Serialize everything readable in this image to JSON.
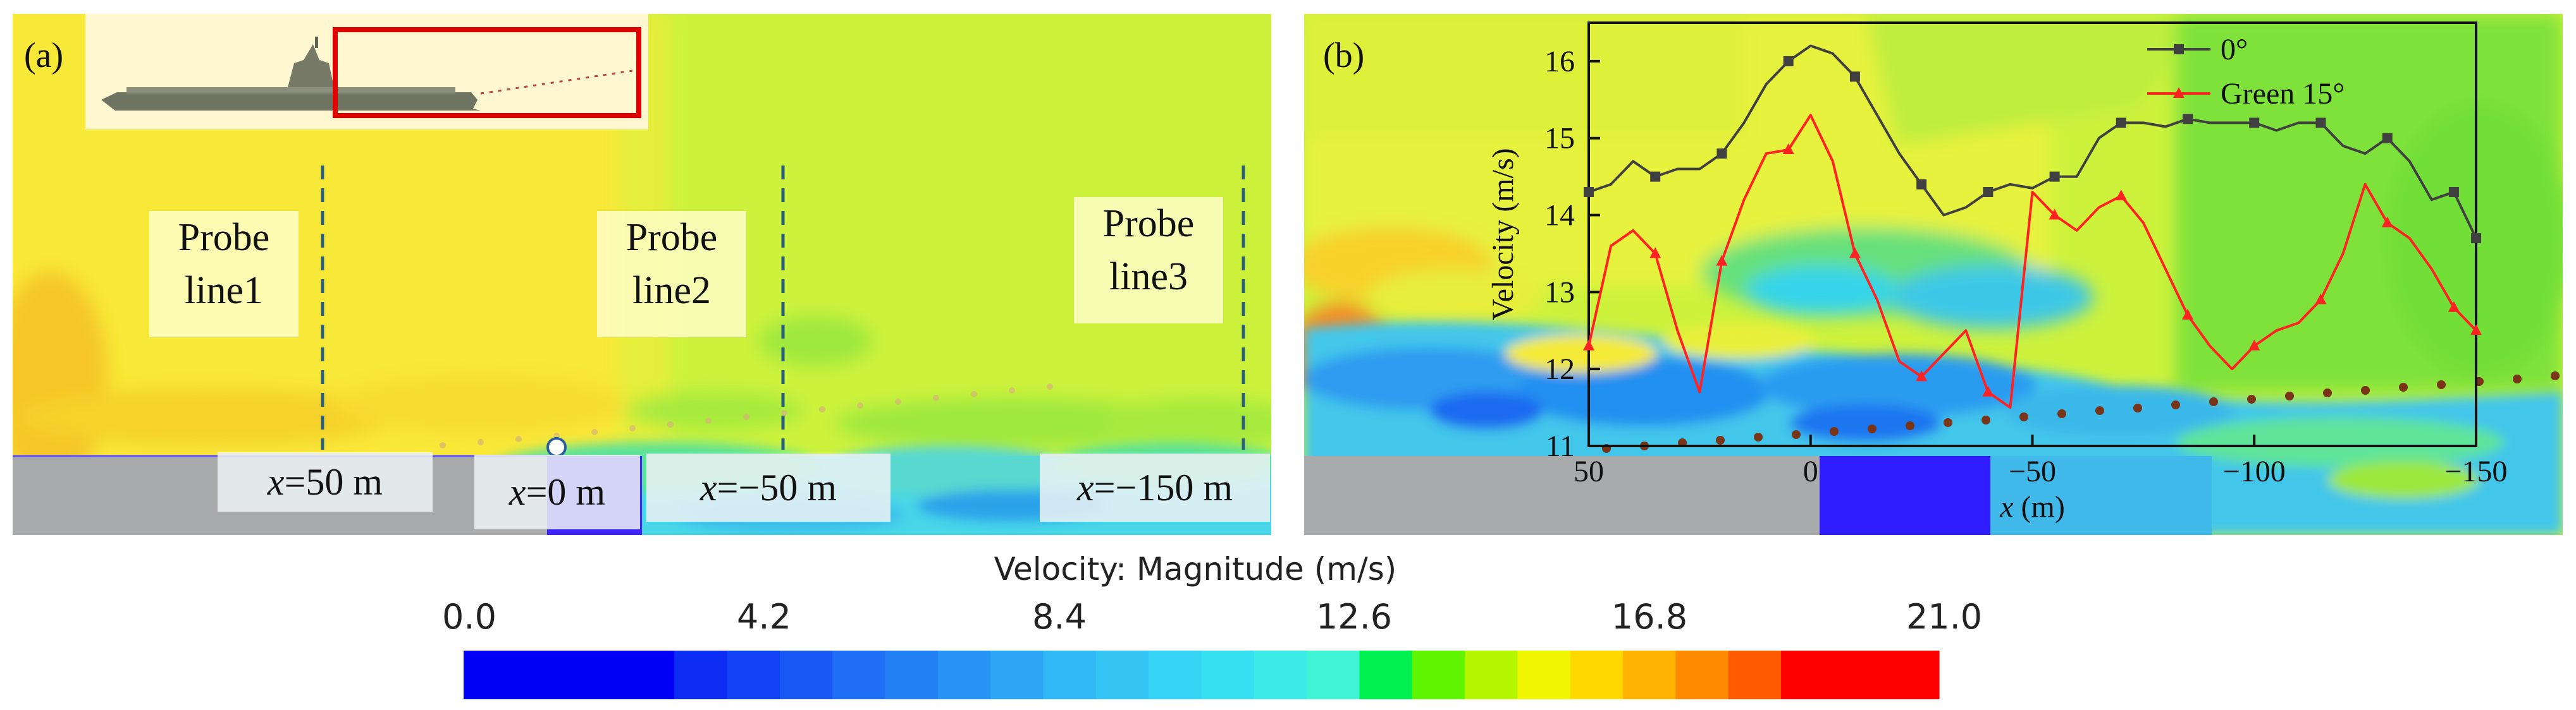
{
  "panels": {
    "a": {
      "label": "(a)",
      "probe_lines": [
        {
          "name": "Probe\nline1"
        },
        {
          "name": "Probe\nline2"
        },
        {
          "name": "Probe\nline3"
        }
      ],
      "positions": [
        {
          "var": "x",
          "text": "=50 m"
        },
        {
          "var": "x",
          "text": "=0 m"
        },
        {
          "var": "x",
          "text": "=−50 m"
        },
        {
          "var": "x",
          "text": "=−150 m"
        }
      ]
    },
    "b": {
      "label": "(b)"
    }
  },
  "colorbar": {
    "title": "Velocity: Magnitude (m/s)",
    "ticks": [
      "0.0",
      "4.2",
      "8.4",
      "12.6",
      "16.8",
      "21.0"
    ],
    "min": 0,
    "max": 21,
    "colors": [
      "#0000f5",
      "#0000f5",
      "#0000f5",
      "#0000f5",
      "#0d2df5",
      "#1341f5",
      "#1a58f5",
      "#1f6ef5",
      "#2481f5",
      "#2894f5",
      "#2ca6f5",
      "#30b7f5",
      "#33c6f5",
      "#35d4f5",
      "#37e0f0",
      "#3aebe8",
      "#3ff3d4",
      "#00f050",
      "#5ff500",
      "#b4f500",
      "#f0f500",
      "#ffd800",
      "#ffb300",
      "#ff8a00",
      "#ff5a00",
      "#ff0000",
      "#ff0000",
      "#ff0000"
    ]
  },
  "colors": {
    "line_0deg": "#404040",
    "line_green15": "#ff2222",
    "highlight_box": "#e00000"
  },
  "chart_data": {
    "type": "line",
    "title": "",
    "xlabel": "x (m)",
    "ylabel": "Velocity (m/s)",
    "xlim": [
      50,
      -150
    ],
    "ylim": [
      11,
      16.5
    ],
    "x_ticks": [
      50,
      0,
      -50,
      -100,
      -150
    ],
    "x_tick_labels": [
      "50",
      "0",
      "−50",
      "−100",
      "−150"
    ],
    "y_ticks": [
      11,
      12,
      13,
      14,
      15,
      16
    ],
    "y_tick_labels": [
      "11",
      "12",
      "13",
      "14",
      "15",
      "16"
    ],
    "legend_position": "top-right",
    "series": [
      {
        "name": "0°",
        "marker": "square",
        "x": [
          50,
          45,
          40,
          35,
          30,
          25,
          20,
          15,
          10,
          5,
          0,
          -5,
          -10,
          -15,
          -20,
          -25,
          -30,
          -35,
          -40,
          -45,
          -50,
          -55,
          -60,
          -65,
          -70,
          -75,
          -80,
          -85,
          -90,
          -95,
          -100,
          -105,
          -110,
          -115,
          -120,
          -125,
          -130,
          -135,
          -140,
          -145,
          -150
        ],
        "y": [
          14.3,
          14.4,
          14.7,
          14.5,
          14.6,
          14.6,
          14.8,
          15.2,
          15.7,
          16.0,
          16.2,
          16.1,
          15.8,
          15.3,
          14.8,
          14.4,
          14.0,
          14.1,
          14.3,
          14.4,
          14.35,
          14.5,
          14.5,
          15.0,
          15.2,
          15.2,
          15.15,
          15.25,
          15.2,
          15.2,
          15.2,
          15.1,
          15.2,
          15.2,
          14.9,
          14.8,
          15.0,
          14.7,
          14.2,
          14.3,
          13.7
        ]
      },
      {
        "name": "Green 15°",
        "marker": "triangle",
        "x": [
          50,
          45,
          40,
          35,
          30,
          25,
          20,
          15,
          10,
          5,
          0,
          -5,
          -10,
          -15,
          -20,
          -25,
          -30,
          -35,
          -40,
          -45,
          -50,
          -55,
          -60,
          -65,
          -70,
          -75,
          -80,
          -85,
          -90,
          -95,
          -100,
          -105,
          -110,
          -115,
          -120,
          -125,
          -130,
          -135,
          -140,
          -145,
          -150
        ],
        "y": [
          12.3,
          13.6,
          13.8,
          13.5,
          12.5,
          11.7,
          13.4,
          14.2,
          14.8,
          14.85,
          15.3,
          14.7,
          13.5,
          12.9,
          12.1,
          11.9,
          12.2,
          12.5,
          11.7,
          11.5,
          14.3,
          14.0,
          13.8,
          14.1,
          14.25,
          13.9,
          13.3,
          12.7,
          12.3,
          12.0,
          12.3,
          12.5,
          12.6,
          12.9,
          13.5,
          14.4,
          13.9,
          13.7,
          13.3,
          12.8,
          12.5
        ]
      }
    ]
  }
}
